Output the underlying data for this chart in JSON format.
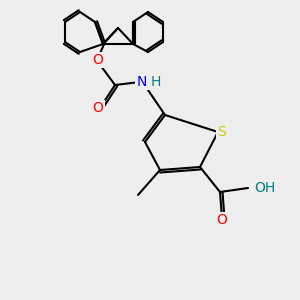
{
  "bg_color": "#eeeeee",
  "bond_color": "#000000",
  "bond_lw": 1.5,
  "atom_colors": {
    "S": "#cccc00",
    "O": "#ff0000",
    "N": "#0000ff",
    "H_on_O": "#008080",
    "H_on_N": "#008080",
    "C": "#000000"
  },
  "font_size": 9,
  "figsize": [
    3.0,
    3.0
  ],
  "dpi": 100
}
